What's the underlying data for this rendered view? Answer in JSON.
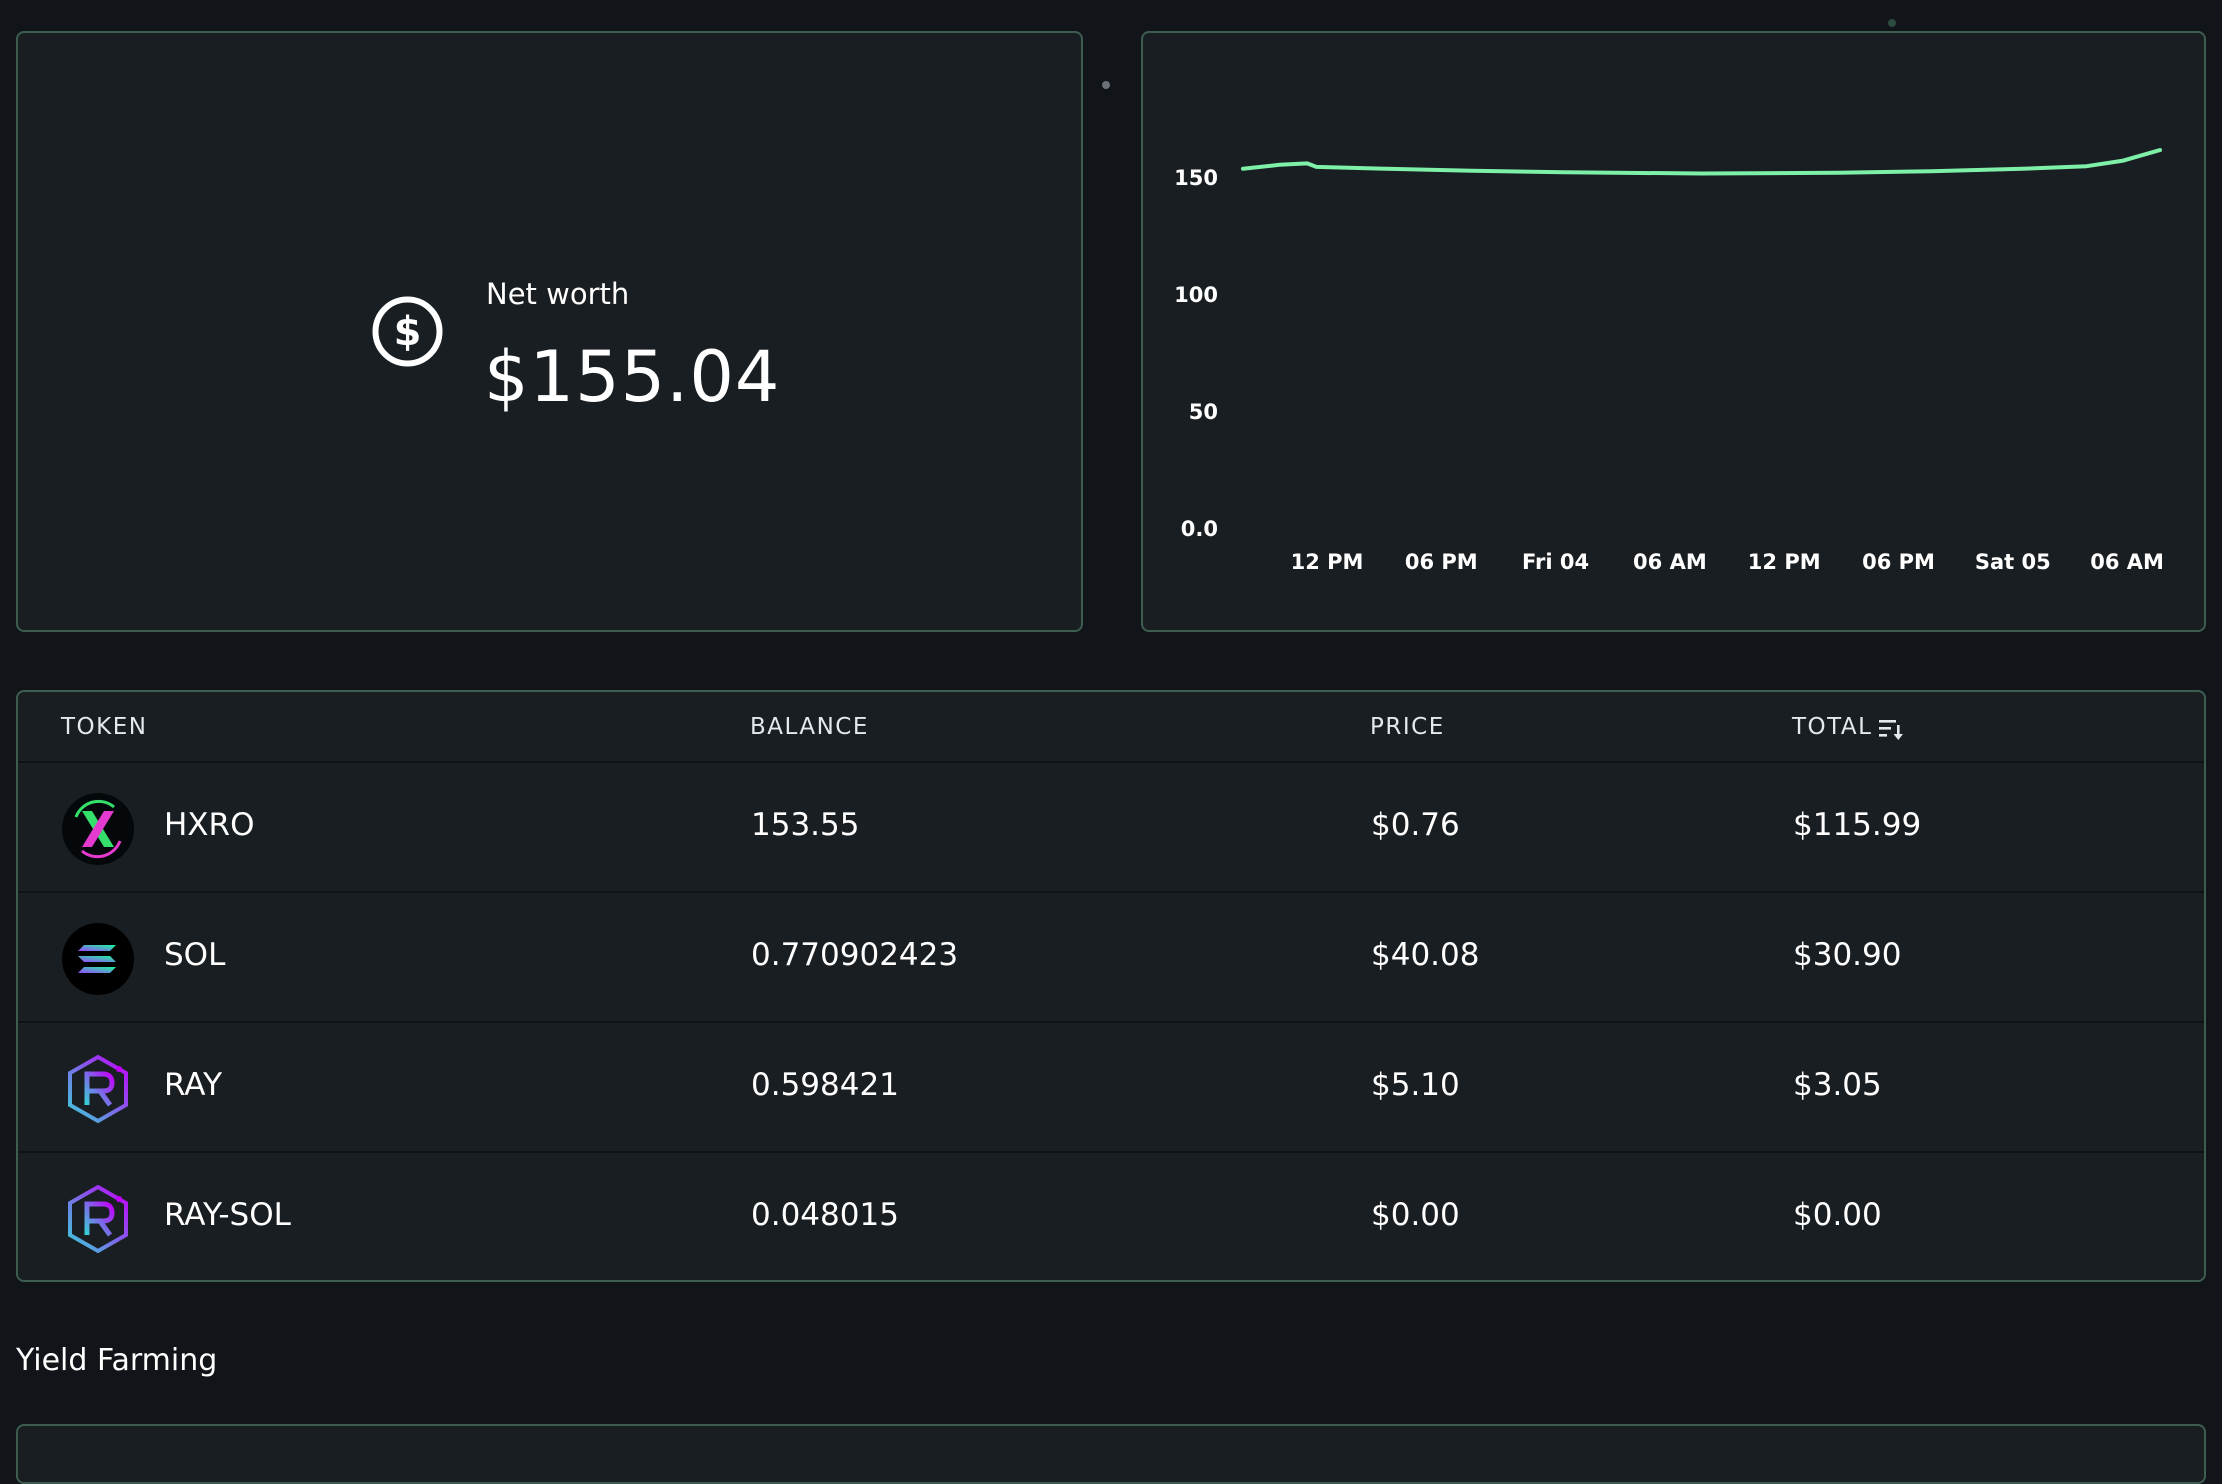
{
  "net_worth": {
    "label": "Net worth",
    "value": "$155.04",
    "icon": "dollar-circle-icon"
  },
  "chart_data": {
    "type": "line",
    "y_ticks": [
      "150",
      "100",
      "50",
      "0.0"
    ],
    "ylim": [
      0,
      170
    ],
    "x_ticks": [
      "12 PM",
      "06 PM",
      "Fri 04",
      "06 AM",
      "12 PM",
      "06 PM",
      "Sat 05",
      "06 AM"
    ],
    "series": [
      {
        "color": "#7ff0a8",
        "x": [
          0,
          0.04,
          0.07,
          0.08,
          0.15,
          0.25,
          0.35,
          0.5,
          0.65,
          0.75,
          0.85,
          0.92,
          0.96,
          1.0
        ],
        "values": [
          153.5,
          155.2,
          155.8,
          154.3,
          153.6,
          152.7,
          152.0,
          151.5,
          151.8,
          152.5,
          153.5,
          154.6,
          157.0,
          161.5
        ]
      }
    ]
  },
  "table": {
    "columns": {
      "token": "TOKEN",
      "balance": "BALANCE",
      "price": "PRICE",
      "total": "TOTAL"
    },
    "sort_icon": "sort-descending-icon",
    "rows": [
      {
        "icon": "hxro-logo-icon",
        "symbol": "HXRO",
        "balance": "153.55",
        "price": "$0.76",
        "total": "$115.99"
      },
      {
        "icon": "solana-logo-icon",
        "symbol": "SOL",
        "balance": "0.770902423",
        "price": "$40.08",
        "total": "$30.90"
      },
      {
        "icon": "raydium-logo-icon",
        "symbol": "RAY",
        "balance": "0.598421",
        "price": "$5.10",
        "total": "$3.05"
      },
      {
        "icon": "raydium-logo-icon",
        "symbol": "RAY-SOL",
        "balance": "0.048015",
        "price": "$0.00",
        "total": "$0.00"
      }
    ]
  },
  "yield_farming": {
    "title": "Yield Farming"
  },
  "colors": {
    "background": "#111519",
    "card": "#191e22",
    "card_border": "#3d5d50",
    "line": "#7ff0a8"
  }
}
